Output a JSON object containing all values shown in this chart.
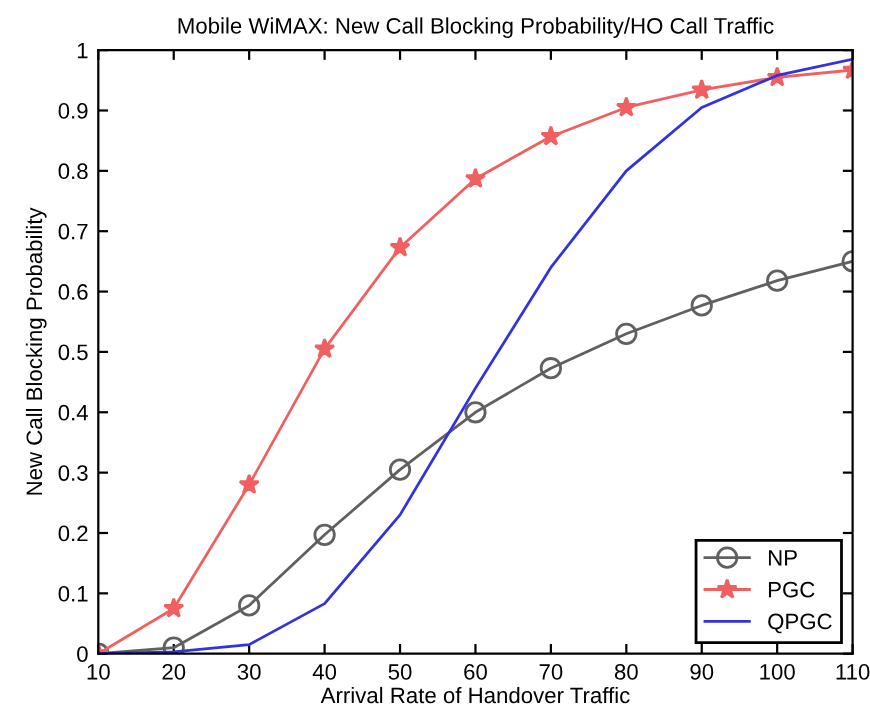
{
  "chart_data": {
    "type": "line",
    "title": "Mobile WiMAX: New Call Blocking Probability/HO Call Traffic",
    "xlabel": "Arrival Rate of Handover Traffic",
    "ylabel": "New Call Blocking Probability",
    "x": [
      10,
      20,
      30,
      40,
      50,
      60,
      70,
      80,
      90,
      100,
      110
    ],
    "series": [
      {
        "name": "NP",
        "color": "#606060",
        "marker": "circle",
        "values": [
          0,
          0.01,
          0.08,
          0.197,
          0.305,
          0.4,
          0.473,
          0.53,
          0.577,
          0.618,
          0.65
        ]
      },
      {
        "name": "PGC",
        "color": "#f06060",
        "marker": "star",
        "values": [
          0,
          0.075,
          0.28,
          0.505,
          0.673,
          0.787,
          0.857,
          0.905,
          0.934,
          0.955,
          0.967
        ]
      },
      {
        "name": "QPGC",
        "color": "#3333dd",
        "marker": "none",
        "values": [
          0,
          0.003,
          0.015,
          0.083,
          0.23,
          0.44,
          0.64,
          0.8,
          0.905,
          0.958,
          0.985
        ]
      }
    ],
    "xlim": [
      10,
      110
    ],
    "xticks": [
      10,
      20,
      30,
      40,
      50,
      60,
      70,
      80,
      90,
      100,
      110
    ],
    "ylim": [
      0,
      1
    ],
    "yticks": [
      0,
      0.1,
      0.2,
      0.3,
      0.4,
      0.5,
      0.6,
      0.7,
      0.8,
      0.9,
      1
    ],
    "grid": false,
    "legend": "bottom right",
    "line_style": "solid"
  }
}
